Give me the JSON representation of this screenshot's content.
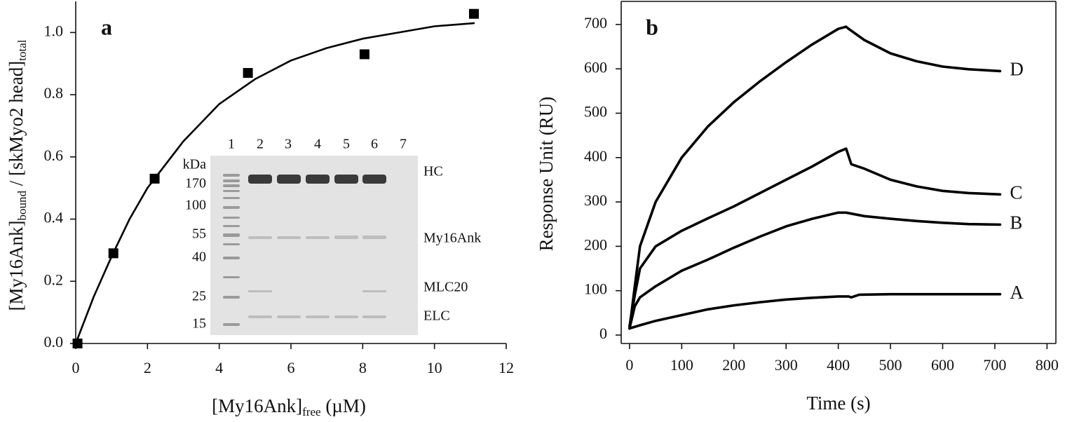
{
  "chart_data": [
    {
      "type": "scatter",
      "panel_label": "a",
      "x_label": [
        "[My16Ank]",
        "free",
        " (µM)"
      ],
      "y_label": [
        "[My16Ank]",
        "bound",
        " / [skMyo2 head]",
        "total"
      ],
      "xlim": [
        0,
        12
      ],
      "xticks": [
        0,
        2,
        4,
        6,
        8,
        10,
        12
      ],
      "ylim": [
        0,
        1.1
      ],
      "yticks": [
        {
          "value": 0,
          "label": "0.0"
        },
        0.2,
        0.4,
        0.6,
        0.8,
        {
          "value": 1,
          "label": "1.0"
        }
      ],
      "series": [
        {
          "style": "markers",
          "color": "#000000",
          "x": [
            0.05,
            1.05,
            2.2,
            4.8,
            8.05,
            11.1
          ],
          "values": [
            0.0,
            0.29,
            0.53,
            0.87,
            0.93,
            1.06
          ]
        },
        {
          "style": "line",
          "color": "#000000",
          "x": [
            0,
            0.5,
            1,
            1.5,
            2,
            3,
            4,
            5,
            6,
            7,
            8,
            9,
            10,
            11.1
          ],
          "values": [
            0,
            0.15,
            0.28,
            0.4,
            0.5,
            0.65,
            0.77,
            0.85,
            0.91,
            0.95,
            0.98,
            1.0,
            1.02,
            1.03
          ]
        }
      ],
      "inset": {
        "lanes": [
          "1",
          "2",
          "3",
          "4",
          "5",
          "6",
          "7"
        ],
        "marker_unit": "kDa",
        "markers": [
          "170",
          "100",
          "55",
          "40",
          "25",
          "15"
        ],
        "bands": [
          "HC",
          "My16Ank",
          "MLC20",
          "ELC"
        ]
      }
    },
    {
      "type": "line",
      "panel_label": "b",
      "x_label": [
        "Time (s)"
      ],
      "y_label": [
        "Response Unit (RU)"
      ],
      "xlim": [
        -16,
        817
      ],
      "xticks": [
        0,
        100,
        200,
        300,
        400,
        500,
        600,
        700,
        800
      ],
      "ylim": [
        -19,
        752
      ],
      "yticks": [
        0,
        100,
        200,
        300,
        400,
        500,
        600,
        700
      ],
      "series": [
        {
          "name": "A",
          "color": "#000000",
          "x": [
            0,
            20,
            50,
            100,
            150,
            200,
            250,
            300,
            350,
            400,
            420,
            425,
            440,
            500,
            600,
            710
          ],
          "values": [
            15,
            22,
            32,
            45,
            58,
            67,
            74,
            80,
            84,
            87,
            87,
            85,
            91,
            92,
            92,
            92
          ]
        },
        {
          "name": "B",
          "color": "#000000",
          "x": [
            0,
            10,
            20,
            50,
            100,
            150,
            200,
            250,
            300,
            350,
            400,
            415,
            450,
            500,
            550,
            600,
            650,
            710
          ],
          "values": [
            15,
            65,
            85,
            110,
            145,
            170,
            197,
            222,
            245,
            262,
            276,
            276,
            268,
            262,
            257,
            253,
            250,
            249
          ]
        },
        {
          "name": "C",
          "color": "#000000",
          "x": [
            0,
            10,
            20,
            50,
            100,
            150,
            200,
            250,
            300,
            350,
            400,
            415,
            425,
            450,
            500,
            550,
            600,
            650,
            710
          ],
          "values": [
            20,
            90,
            150,
            200,
            235,
            263,
            290,
            320,
            350,
            380,
            413,
            420,
            385,
            375,
            350,
            335,
            325,
            320,
            317
          ]
        },
        {
          "name": "D",
          "color": "#000000",
          "x": [
            0,
            10,
            20,
            50,
            100,
            150,
            200,
            250,
            300,
            350,
            400,
            415,
            420,
            450,
            500,
            550,
            600,
            650,
            710
          ],
          "values": [
            15,
            110,
            200,
            300,
            400,
            470,
            525,
            572,
            615,
            655,
            690,
            695,
            690,
            665,
            635,
            617,
            605,
            599,
            595
          ]
        }
      ]
    }
  ]
}
